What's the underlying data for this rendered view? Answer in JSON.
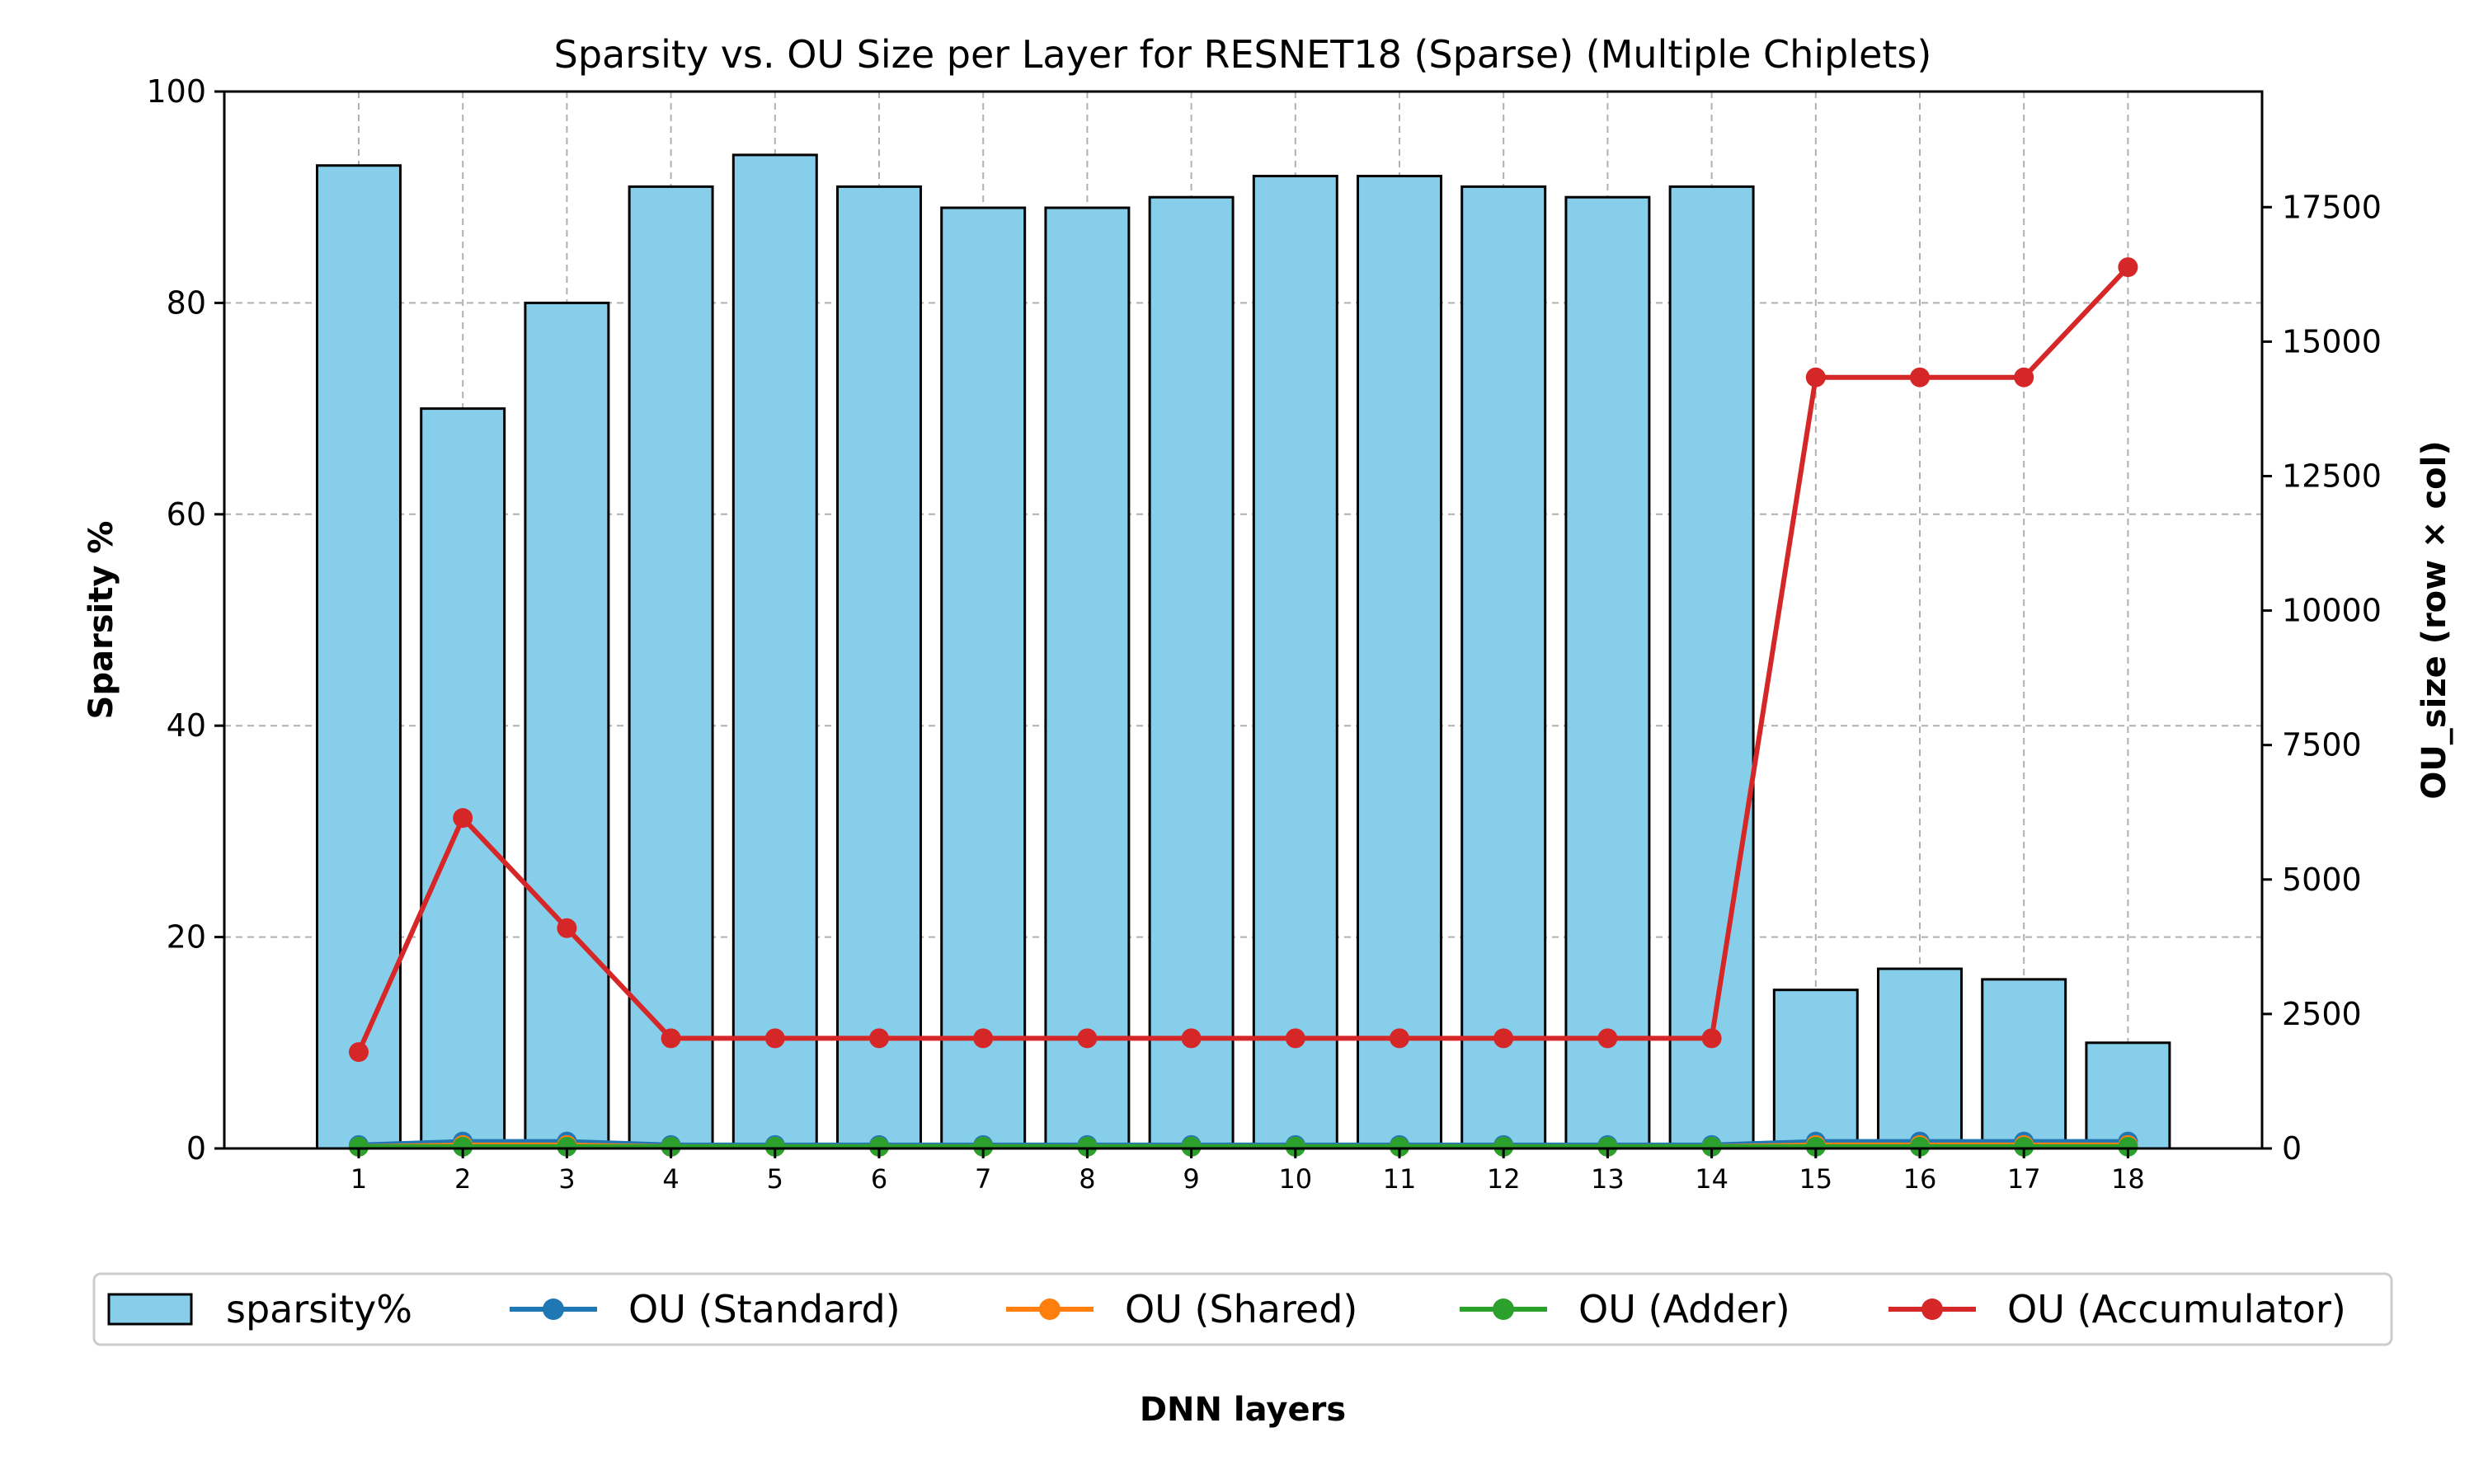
{
  "chart_data": {
    "type": "bar",
    "title": "Sparsity vs. OU Size per Layer for RESNET18 (Sparse) (Multiple Chiplets)",
    "xlabel": "DNN layers",
    "ylabel": "Sparsity %",
    "y2label": "OU_size (row × col)",
    "categories": [
      "1",
      "2",
      "3",
      "4",
      "5",
      "6",
      "7",
      "8",
      "9",
      "10",
      "11",
      "12",
      "13",
      "14",
      "15",
      "16",
      "17",
      "18"
    ],
    "ylim": [
      0,
      100
    ],
    "yticks": [
      "0",
      "20",
      "40",
      "60",
      "80",
      "100"
    ],
    "y2lim": [
      0,
      19650
    ],
    "y2ticks": [
      "0",
      "2500",
      "5000",
      "7500",
      "10000",
      "12500",
      "15000",
      "17500"
    ],
    "grid": true,
    "legend_position": "below",
    "bar_series": {
      "name": "sparsity%",
      "color": "#87ceeb",
      "values": [
        93,
        70,
        80,
        91,
        94,
        91,
        89,
        89,
        90,
        92,
        92,
        91,
        90,
        91,
        15,
        17,
        16,
        10
      ]
    },
    "line_series": [
      {
        "name": "OU (Standard)",
        "color": "#1f77b4",
        "values": [
          64,
          128,
          128,
          64,
          64,
          64,
          64,
          64,
          64,
          64,
          64,
          64,
          64,
          64,
          128,
          128,
          128,
          128
        ]
      },
      {
        "name": "OU (Shared)",
        "color": "#ff7f0e",
        "values": [
          32,
          64,
          64,
          32,
          32,
          32,
          32,
          32,
          32,
          32,
          32,
          32,
          32,
          32,
          64,
          64,
          64,
          64
        ]
      },
      {
        "name": "OU (Adder)",
        "color": "#2ca02c",
        "values": [
          32,
          32,
          32,
          32,
          32,
          32,
          32,
          32,
          32,
          32,
          32,
          32,
          32,
          32,
          32,
          32,
          32,
          32
        ]
      },
      {
        "name": "OU (Accumulator)",
        "color": "#d62728",
        "values": [
          1792,
          6144,
          4096,
          2048,
          2048,
          2048,
          2048,
          2048,
          2048,
          2048,
          2048,
          2048,
          2048,
          2048,
          14336,
          14336,
          14336,
          16384
        ]
      }
    ]
  }
}
